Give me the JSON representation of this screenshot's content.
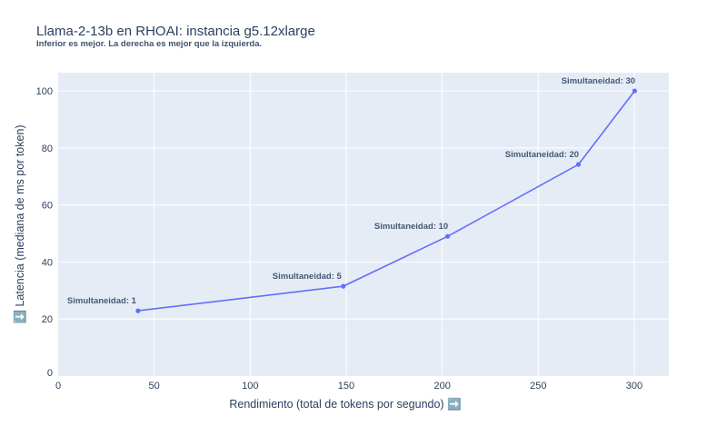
{
  "header": {
    "title": "Llama-2-13b en RHOAI: instancia g5.12xlarge",
    "subtitle": "Inferior es mejor. La derecha es mejor que la izquierda."
  },
  "colors": {
    "line": "#636efa",
    "plot_bg": "#e5ecf6",
    "grid": "#ffffff",
    "text": "#2a3f5f",
    "icon_bg": "#5b8cc7"
  },
  "icons": {
    "y_axis_icon": "arrow-down-box-icon",
    "x_axis_icon": "arrow-right-box-icon"
  },
  "chart_data": {
    "type": "line",
    "title": "Llama-2-13b en RHOAI: instancia g5.12xlarge",
    "subtitle": "Inferior es mejor. La derecha es mejor que la izquierda.",
    "xlabel": "Rendimiento (total de tokens por segundo) ➡️",
    "ylabel": "⬇️ Latencia (mediana de ms por token)",
    "xlim": [
      0,
      318
    ],
    "ylim": [
      0,
      106.4
    ],
    "xticks": [
      0,
      50,
      100,
      150,
      200,
      250,
      300
    ],
    "yticks": [
      0,
      20,
      40,
      60,
      80,
      100
    ],
    "grid": true,
    "legend": null,
    "series": [
      {
        "name": "Llama-2-13b",
        "mode": "lines+markers",
        "x": [
          41.6,
          148.5,
          202.8,
          270.9,
          300.2
        ],
        "y": [
          22.9,
          31.5,
          49.0,
          74.2,
          100.0
        ],
        "labels": [
          "Simultaneidad: 1",
          "Simultaneidad: 5",
          "Simultaneidad: 10",
          "Simultaneidad: 20",
          "Simultaneidad: 30"
        ]
      }
    ]
  }
}
